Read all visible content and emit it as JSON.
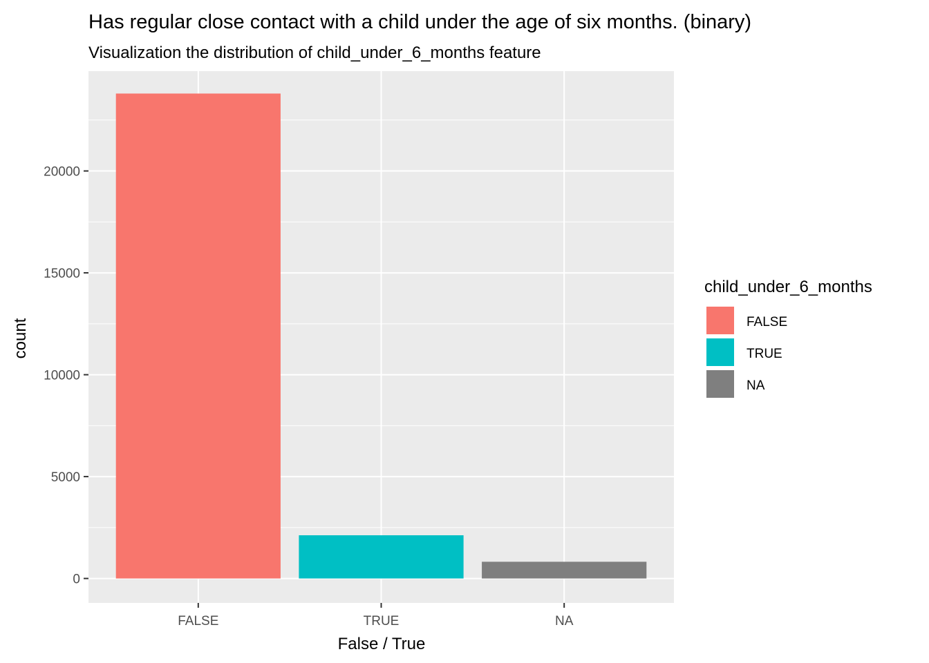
{
  "chart_data": {
    "type": "bar",
    "title": "Has regular close contact with a child under the age of six months. (binary)",
    "subtitle": "Visualization the distribution of child_under_6_months feature",
    "xlabel": "False / True",
    "ylabel": "count",
    "categories": [
      "FALSE",
      "TRUE",
      "NA"
    ],
    "values": [
      23800,
      2120,
      820
    ],
    "colors": [
      "#F8766D",
      "#00BFC4",
      "#7F7F7F"
    ],
    "ylim": [
      -1200,
      24900
    ],
    "yticks": [
      0,
      5000,
      10000,
      15000,
      20000
    ],
    "ytick_labels": [
      "0",
      "5000",
      "10000",
      "15000",
      "20000"
    ],
    "grid": true,
    "panel_background": "#EBEBEB",
    "legend": {
      "title": "child_under_6_months",
      "placement": "right",
      "items": [
        "FALSE",
        "TRUE",
        "NA"
      ]
    }
  }
}
